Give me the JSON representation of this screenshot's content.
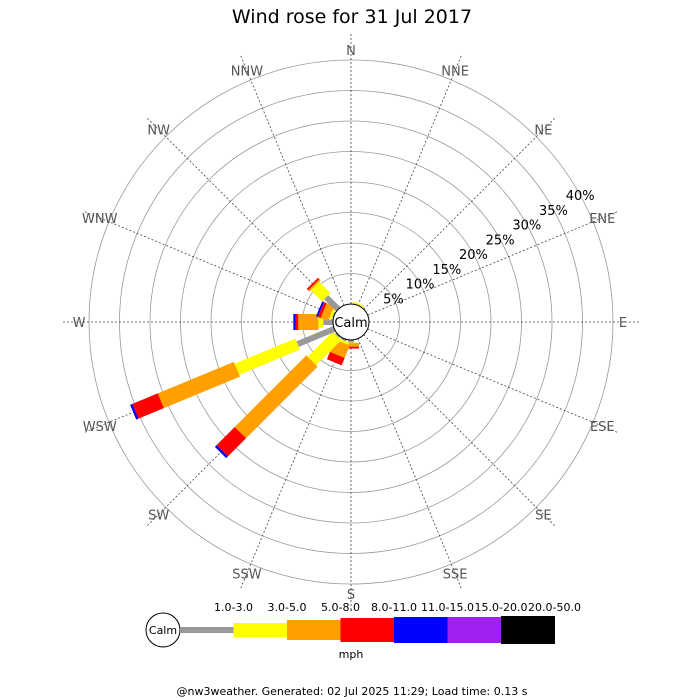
{
  "footer": "@nw3weather. Generated: 02 Jul 2025 11:29; Load time: 0.13 s",
  "chart_data": {
    "type": "wind-rose",
    "title": "Wind rose for 31 Jul 2017",
    "center_label": "Calm",
    "directions": [
      "N",
      "NNE",
      "NE",
      "ENE",
      "E",
      "ESE",
      "SE",
      "SSE",
      "S",
      "SSW",
      "SW",
      "WSW",
      "W",
      "WNW",
      "NW",
      "NNW"
    ],
    "rings": [
      "5%",
      "10%",
      "15%",
      "20%",
      "25%",
      "30%",
      "35%",
      "40%"
    ],
    "ring_values": [
      5,
      10,
      15,
      20,
      25,
      30,
      35,
      40
    ],
    "max_percent": 40,
    "calm_percent": 1.6,
    "unit": "mph",
    "speed_bins": [
      {
        "label": "1.0-3.0",
        "color": "#999999"
      },
      {
        "label": "3.0-5.0",
        "color": "#ffff00"
      },
      {
        "label": "5.0-8.0",
        "color": "#ffa000"
      },
      {
        "label": "8.0-11.0",
        "color": "#ff0000"
      },
      {
        "label": "11.0-15.0",
        "color": "#0000ff"
      },
      {
        "label": "15.0-20.0",
        "color": "#a020f0"
      },
      {
        "label": "20.0-50.0",
        "color": "#000000"
      }
    ],
    "series": [
      {
        "direction": "N",
        "values": [
          0,
          0.0,
          0.0,
          0.0,
          0,
          0,
          0
        ]
      },
      {
        "direction": "NNE",
        "values": [
          0,
          0.3,
          0.0,
          0.0,
          0,
          0,
          0
        ]
      },
      {
        "direction": "NE",
        "values": [
          0,
          0.0,
          0.0,
          0.0,
          0,
          0,
          0
        ]
      },
      {
        "direction": "ENE",
        "values": [
          0.0,
          0.0,
          0.0,
          0.0,
          0,
          0,
          0
        ]
      },
      {
        "direction": "E",
        "values": [
          0.0,
          0.0,
          0.0,
          0.0,
          0,
          0,
          0
        ]
      },
      {
        "direction": "ESE",
        "values": [
          0.0,
          0.0,
          0.0,
          0.0,
          0,
          0,
          0
        ]
      },
      {
        "direction": "SE",
        "values": [
          0.0,
          0.0,
          0.0,
          0.0,
          0,
          0,
          0
        ]
      },
      {
        "direction": "SSE",
        "values": [
          0.0,
          0.0,
          0.0,
          0.0,
          0,
          0,
          0
        ]
      },
      {
        "direction": "S",
        "values": [
          0.4,
          0.1,
          0.6,
          0.3,
          0,
          0,
          0
        ]
      },
      {
        "direction": "SSW",
        "values": [
          0.3,
          0.4,
          2.2,
          1.3,
          0,
          0,
          0
        ]
      },
      {
        "direction": "SW",
        "values": [
          0.3,
          5.8,
          16.6,
          4.2,
          0.4,
          0,
          0
        ]
      },
      {
        "direction": "WSW",
        "values": [
          6.5,
          10.8,
          13.5,
          4.5,
          0.4,
          0,
          0
        ]
      },
      {
        "direction": "W",
        "values": [
          1.6,
          0.8,
          3.3,
          0.4,
          0.4,
          0,
          0
        ]
      },
      {
        "direction": "WNW",
        "values": [
          0.2,
          0.4,
          1.3,
          0.5,
          0.3,
          0,
          0
        ]
      },
      {
        "direction": "NW",
        "values": [
          2.8,
          2.6,
          0.3,
          0.3,
          0,
          0,
          0
        ]
      },
      {
        "direction": "NNW",
        "values": [
          0.0,
          0.0,
          0.0,
          0.0,
          0,
          0,
          0
        ]
      }
    ],
    "grid": true
  }
}
